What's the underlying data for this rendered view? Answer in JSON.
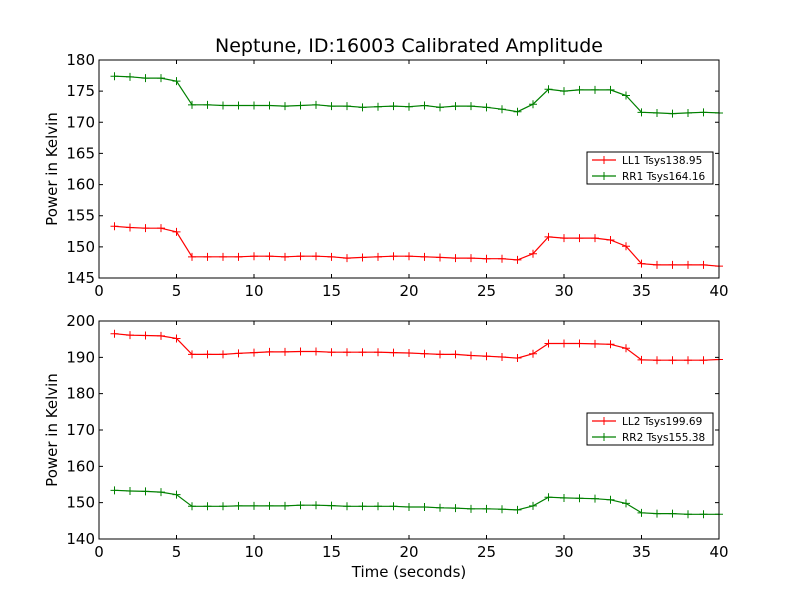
{
  "colors": {
    "red": "#ff0000",
    "green": "#008000"
  },
  "chart_data": [
    {
      "type": "line",
      "title": "Neptune, ID:16003 Calibrated Amplitude",
      "xlabel": "",
      "ylabel": "Power in Kelvin",
      "xlim": [
        0,
        40
      ],
      "ylim": [
        145,
        180
      ],
      "xticks": [
        "0",
        "5",
        "10",
        "15",
        "20",
        "25",
        "30",
        "35",
        "40"
      ],
      "yticks": [
        "145",
        "150",
        "155",
        "160",
        "165",
        "170",
        "175",
        "180"
      ],
      "grid": false,
      "legend_position": "center-right",
      "x": [
        1,
        2,
        3,
        4,
        5,
        6,
        7,
        8,
        9,
        10,
        11,
        12,
        13,
        14,
        15,
        16,
        17,
        18,
        19,
        20,
        21,
        22,
        23,
        24,
        25,
        26,
        27,
        28,
        29,
        30,
        31,
        32,
        33,
        34,
        35,
        36,
        37,
        38,
        39,
        40
      ],
      "series": [
        {
          "name": "LL1 Tsys138.95",
          "color": "#ff0000",
          "values": [
            153.3,
            153.1,
            153.0,
            153.0,
            152.4,
            148.4,
            148.4,
            148.4,
            148.4,
            148.5,
            148.5,
            148.4,
            148.5,
            148.5,
            148.4,
            148.2,
            148.3,
            148.4,
            148.5,
            148.5,
            148.4,
            148.3,
            148.2,
            148.2,
            148.1,
            148.1,
            147.9,
            148.9,
            151.6,
            151.4,
            151.4,
            151.4,
            151.1,
            150.1,
            147.3,
            147.1,
            147.1,
            147.1,
            147.1,
            146.9
          ]
        },
        {
          "name": "RR1 Tsys164.16",
          "color": "#008000",
          "values": [
            177.4,
            177.3,
            177.1,
            177.1,
            176.6,
            172.8,
            172.8,
            172.7,
            172.7,
            172.7,
            172.7,
            172.6,
            172.7,
            172.8,
            172.6,
            172.6,
            172.4,
            172.5,
            172.6,
            172.5,
            172.7,
            172.4,
            172.6,
            172.6,
            172.4,
            172.1,
            171.7,
            172.9,
            175.3,
            175.0,
            175.2,
            175.2,
            175.2,
            174.3,
            171.6,
            171.5,
            171.4,
            171.5,
            171.6,
            171.5
          ]
        }
      ]
    },
    {
      "type": "line",
      "title": "",
      "xlabel": "Time (seconds)",
      "ylabel": "Power in Kelvin",
      "xlim": [
        0,
        40
      ],
      "ylim": [
        140,
        200
      ],
      "xticks": [
        "0",
        "5",
        "10",
        "15",
        "20",
        "25",
        "30",
        "35",
        "40"
      ],
      "yticks": [
        "140",
        "150",
        "160",
        "170",
        "180",
        "190",
        "200"
      ],
      "grid": false,
      "legend_position": "center-right",
      "x": [
        1,
        2,
        3,
        4,
        5,
        6,
        7,
        8,
        9,
        10,
        11,
        12,
        13,
        14,
        15,
        16,
        17,
        18,
        19,
        20,
        21,
        22,
        23,
        24,
        25,
        26,
        27,
        28,
        29,
        30,
        31,
        32,
        33,
        34,
        35,
        36,
        37,
        38,
        39,
        40
      ],
      "series": [
        {
          "name": "LL2 Tsys199.69",
          "color": "#ff0000",
          "values": [
            196.5,
            196.1,
            196.0,
            195.9,
            195.2,
            190.8,
            190.8,
            190.8,
            191.1,
            191.3,
            191.5,
            191.5,
            191.6,
            191.6,
            191.4,
            191.4,
            191.4,
            191.4,
            191.3,
            191.2,
            191.0,
            190.8,
            190.8,
            190.5,
            190.3,
            190.1,
            189.8,
            191.0,
            193.8,
            193.8,
            193.8,
            193.7,
            193.6,
            192.5,
            189.3,
            189.2,
            189.2,
            189.2,
            189.2,
            189.4
          ]
        },
        {
          "name": "RR2 Tsys155.38",
          "color": "#008000",
          "values": [
            153.4,
            153.2,
            153.1,
            152.9,
            152.2,
            149.0,
            149.0,
            149.0,
            149.1,
            149.1,
            149.1,
            149.1,
            149.3,
            149.3,
            149.2,
            149.0,
            149.0,
            149.0,
            149.0,
            148.8,
            148.8,
            148.6,
            148.5,
            148.3,
            148.3,
            148.2,
            148.0,
            149.1,
            151.5,
            151.3,
            151.2,
            151.1,
            150.8,
            149.8,
            147.2,
            147.0,
            147.0,
            146.8,
            146.8,
            146.8
          ]
        }
      ]
    }
  ]
}
